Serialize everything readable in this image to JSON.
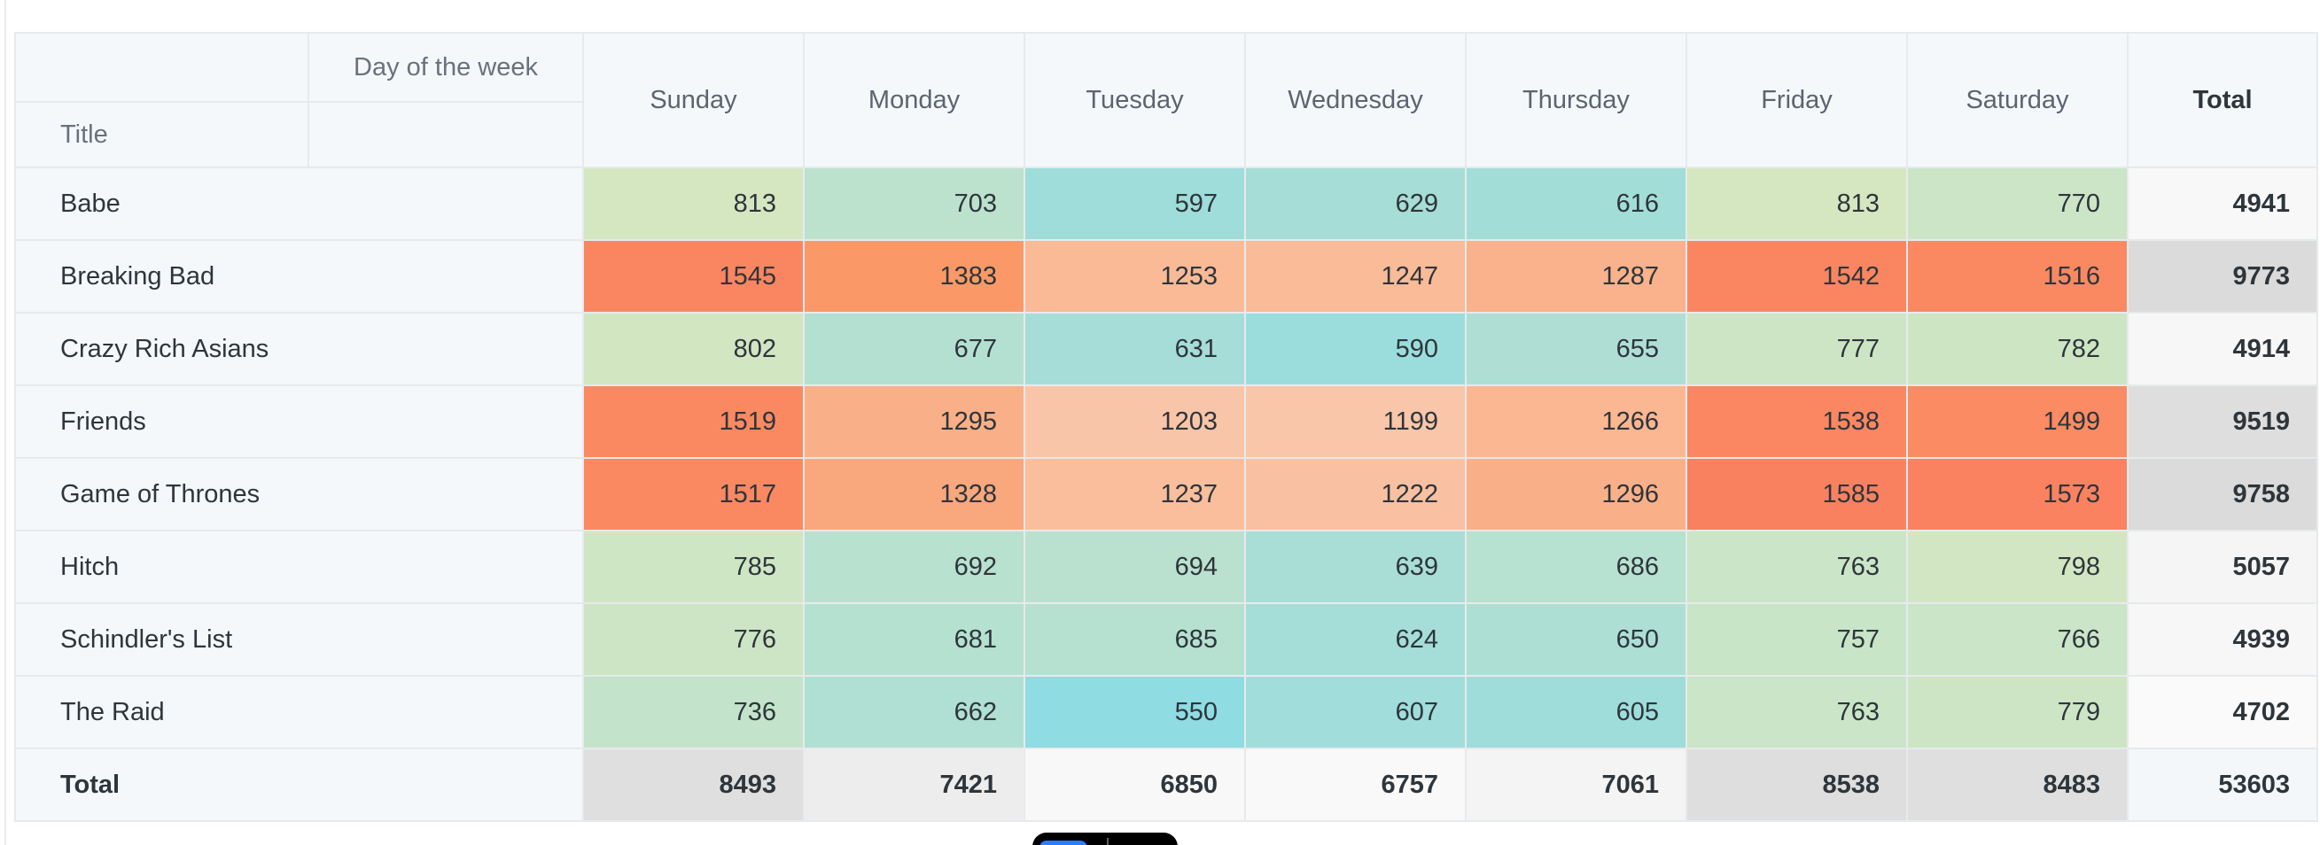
{
  "header": {
    "column_group_label": "Day of the week",
    "row_group_label": "Title",
    "total_label": "Total"
  },
  "colors": {
    "header_bg": "#f5f8fb",
    "grid_border": "#e7eaec",
    "outer_border": "#d5d9dc",
    "label_text": "#2e353b",
    "header_text": "#5d6470",
    "toolbar_bg": "#000000",
    "toolbar_button": "#2e7cf6"
  },
  "floating_toolbar": {
    "button": "blue-accent-button"
  },
  "chart_data": {
    "type": "heatmap",
    "column_dimension": "Day of the week",
    "row_dimension": "Title",
    "columns": [
      "Sunday",
      "Monday",
      "Tuesday",
      "Wednesday",
      "Thursday",
      "Friday",
      "Saturday"
    ],
    "value_range": [
      550,
      1585
    ],
    "rows": [
      {
        "title": "Babe",
        "values": [
          813,
          703,
          597,
          629,
          616,
          813,
          770
        ],
        "total": 4941,
        "colors": [
          "#D5E7C1",
          "#BCE2CD",
          "#9FDDDA",
          "#A6DDD6",
          "#A3DDD8",
          "#D5E7C1",
          "#CBE5C6"
        ],
        "total_color": "#F8F8F8"
      },
      {
        "title": "Breaking Bad",
        "values": [
          1545,
          1383,
          1253,
          1247,
          1287,
          1542,
          1516
        ],
        "total": 9773,
        "colors": [
          "#FA8661",
          "#FA9967",
          "#FABA96",
          "#FABB98",
          "#F9B28B",
          "#FA8661",
          "#FA8962"
        ],
        "total_color": "#DBDBDB"
      },
      {
        "title": "Crazy Rich Asians",
        "values": [
          802,
          677,
          631,
          590,
          655,
          777,
          782
        ],
        "total": 4914,
        "colors": [
          "#D2E6C2",
          "#B4E0D1",
          "#A6DDD8",
          "#9BDDDD",
          "#AFDFD4",
          "#CDE5C5",
          "#CEE5C4"
        ],
        "total_color": "#F7F7F7"
      },
      {
        "title": "Friends",
        "values": [
          1519,
          1295,
          1203,
          1199,
          1266,
          1538,
          1499
        ],
        "total": 9519,
        "colors": [
          "#FA8962",
          "#F9B088",
          "#F9C5A8",
          "#F9C6A9",
          "#FAB792",
          "#FA8762",
          "#FA8B63"
        ],
        "total_color": "#DEDEDE"
      },
      {
        "title": "Game of Thrones",
        "values": [
          1517,
          1328,
          1237,
          1222,
          1296,
          1585,
          1573
        ],
        "total": 9758,
        "colors": [
          "#FA8962",
          "#F9A77C",
          "#FABE9C",
          "#F9C1A1",
          "#F9B088",
          "#FA8160",
          "#FA8260"
        ],
        "total_color": "#DBDBDB"
      },
      {
        "title": "Hitch",
        "values": [
          785,
          692,
          694,
          639,
          686,
          763,
          798
        ],
        "total": 5057,
        "colors": [
          "#CFE6C4",
          "#B9E1CF",
          "#BAE1CF",
          "#A9DED7",
          "#B7E1D0",
          "#CAE5C7",
          "#D2E6C3"
        ],
        "total_color": "#F5F5F5"
      },
      {
        "title": "Schindler's List",
        "values": [
          776,
          681,
          685,
          624,
          650,
          757,
          766
        ],
        "total": 4939,
        "colors": [
          "#CDE5C5",
          "#B5E1D1",
          "#B6E1D0",
          "#A5DDD9",
          "#ADDFD5",
          "#C8E5C8",
          "#CAE5C7"
        ],
        "total_color": "#F7F7F7"
      },
      {
        "title": "The Raid",
        "values": [
          736,
          662,
          550,
          607,
          605,
          763,
          779
        ],
        "total": 4702,
        "colors": [
          "#C3E4CA",
          "#B0DFD3",
          "#8FDCE2",
          "#A0DDDB",
          "#9FDDDB",
          "#CAE5C7",
          "#CDE5C5"
        ],
        "total_color": "#FAFAFA"
      }
    ],
    "totals_row": {
      "title": "Total",
      "values": [
        8493,
        7421,
        6850,
        6757,
        7061,
        8538,
        8483
      ],
      "total": 53603,
      "colors": [
        "#DFDFDF",
        "#EDEDED",
        "#F8F8F8",
        "#F9F9F9",
        "#F4F4F4",
        "#DEDEDE",
        "#DFDFDF"
      ],
      "total_color": "#F3F7FA"
    }
  }
}
